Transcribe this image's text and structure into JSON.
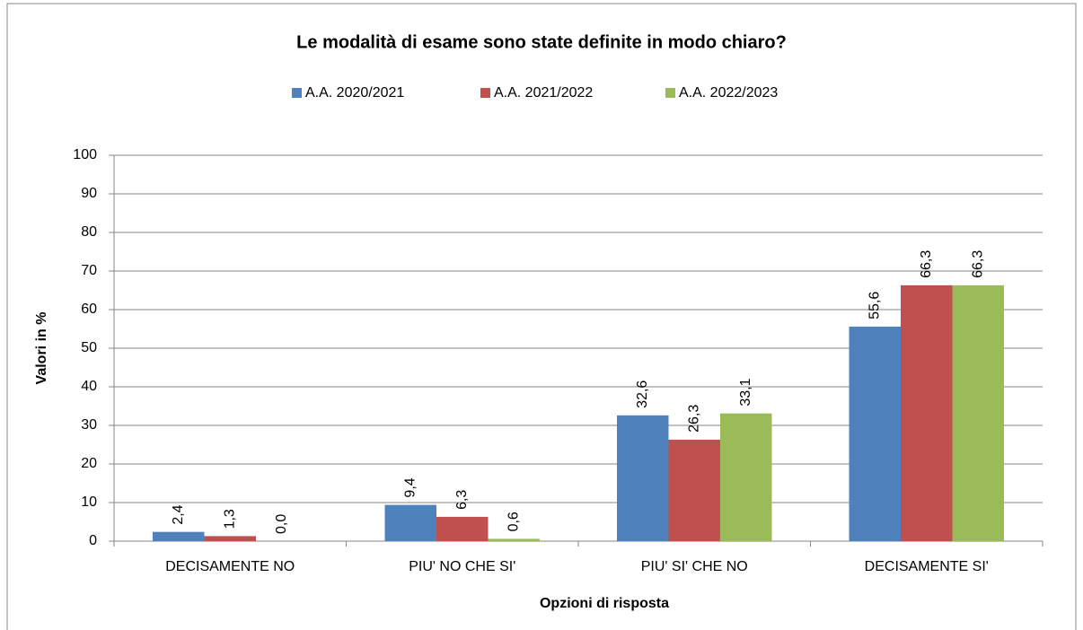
{
  "chart_data": {
    "type": "bar",
    "title": "Le modalità di esame sono state definite in modo chiaro?",
    "xlabel": "Opzioni di risposta",
    "ylabel": "Valori in %",
    "categories": [
      "DECISAMENTE NO",
      "PIU' NO CHE SI'",
      "PIU' SI' CHE NO",
      "DECISAMENTE SI'"
    ],
    "series": [
      {
        "name": "A.A. 2020/2021",
        "color": "#4f81bd",
        "values": [
          2.4,
          9.4,
          32.6,
          55.6
        ],
        "value_labels": [
          "2,4",
          "9,4",
          "32,6",
          "55,6"
        ]
      },
      {
        "name": "A.A. 2021/2022",
        "color": "#c0504d",
        "values": [
          1.3,
          6.3,
          26.3,
          66.3
        ],
        "value_labels": [
          "1,3",
          "6,3",
          "26,3",
          "66,3"
        ]
      },
      {
        "name": "A.A. 2022/2023",
        "color": "#9bbb59",
        "values": [
          0.0,
          0.6,
          33.1,
          66.3
        ],
        "value_labels": [
          "0,0",
          "0,6",
          "33,1",
          "66,3"
        ]
      }
    ],
    "ylim": [
      0,
      100
    ],
    "yticks": [
      0,
      10,
      20,
      30,
      40,
      50,
      60,
      70,
      80,
      90,
      100
    ],
    "grid": true,
    "legend": "top"
  }
}
